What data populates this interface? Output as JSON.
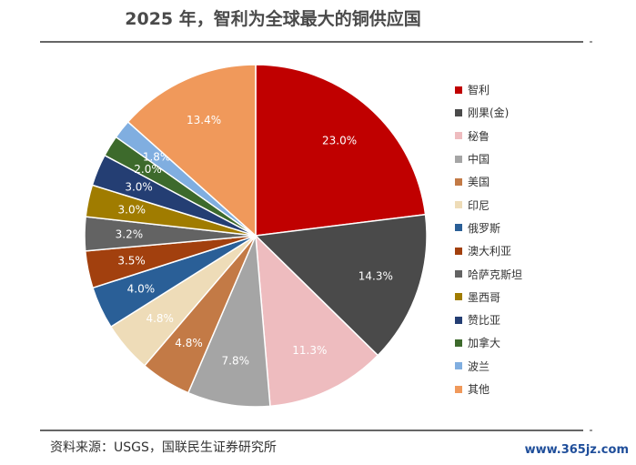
{
  "chart_data": {
    "type": "pie",
    "title": "2025 年，智利为全球最大的铜供应国",
    "legend_position": "right",
    "slices": [
      {
        "label": "智利",
        "value": 23.0,
        "display": "23.0%",
        "color": "#c00000",
        "text_color": "#ffffff"
      },
      {
        "label": "刚果(金)",
        "value": 14.3,
        "display": "14.3%",
        "color": "#4a4a4a",
        "text_color": "#ffffff"
      },
      {
        "label": "秘鲁",
        "value": 11.3,
        "display": "11.3%",
        "color": "#eebcbf",
        "text_color": "#ffffff"
      },
      {
        "label": "中国",
        "value": 7.8,
        "display": "7.8%",
        "color": "#a5a5a5",
        "text_color": "#ffffff"
      },
      {
        "label": "美国",
        "value": 4.8,
        "display": "4.8%",
        "color": "#c37a46",
        "text_color": "#ffffff"
      },
      {
        "label": "印尼",
        "value": 4.8,
        "display": "4.8%",
        "color": "#eedcb8",
        "text_color": "#ffffff"
      },
      {
        "label": "俄罗斯",
        "value": 4.0,
        "display": "4.0%",
        "color": "#2a5f97",
        "text_color": "#ffffff"
      },
      {
        "label": "澳大利亚",
        "value": 3.5,
        "display": "3.5%",
        "color": "#a2400e",
        "text_color": "#ffffff"
      },
      {
        "label": "哈萨克斯坦",
        "value": 3.2,
        "display": "3.2%",
        "color": "#636363",
        "text_color": "#ffffff"
      },
      {
        "label": "墨西哥",
        "value": 3.0,
        "display": "3.0%",
        "color": "#a07c00",
        "text_color": "#ffffff"
      },
      {
        "label": "赞比亚",
        "value": 3.0,
        "display": "3.0%",
        "color": "#243e73",
        "text_color": "#ffffff"
      },
      {
        "label": "加拿大",
        "value": 2.0,
        "display": "2.0%",
        "color": "#3d6a2c",
        "text_color": "#ffffff"
      },
      {
        "label": "波兰",
        "value": 1.8,
        "display": "1.8%",
        "color": "#80aee0",
        "text_color": "#ffffff"
      },
      {
        "label": "其他",
        "value": 13.4,
        "display": "13.4%",
        "color": "#f0995b",
        "text_color": "#ffffff"
      }
    ]
  },
  "footer": {
    "source": "资料来源：USGS，国联民生证券研究所",
    "watermark": "www.365jz.com"
  }
}
